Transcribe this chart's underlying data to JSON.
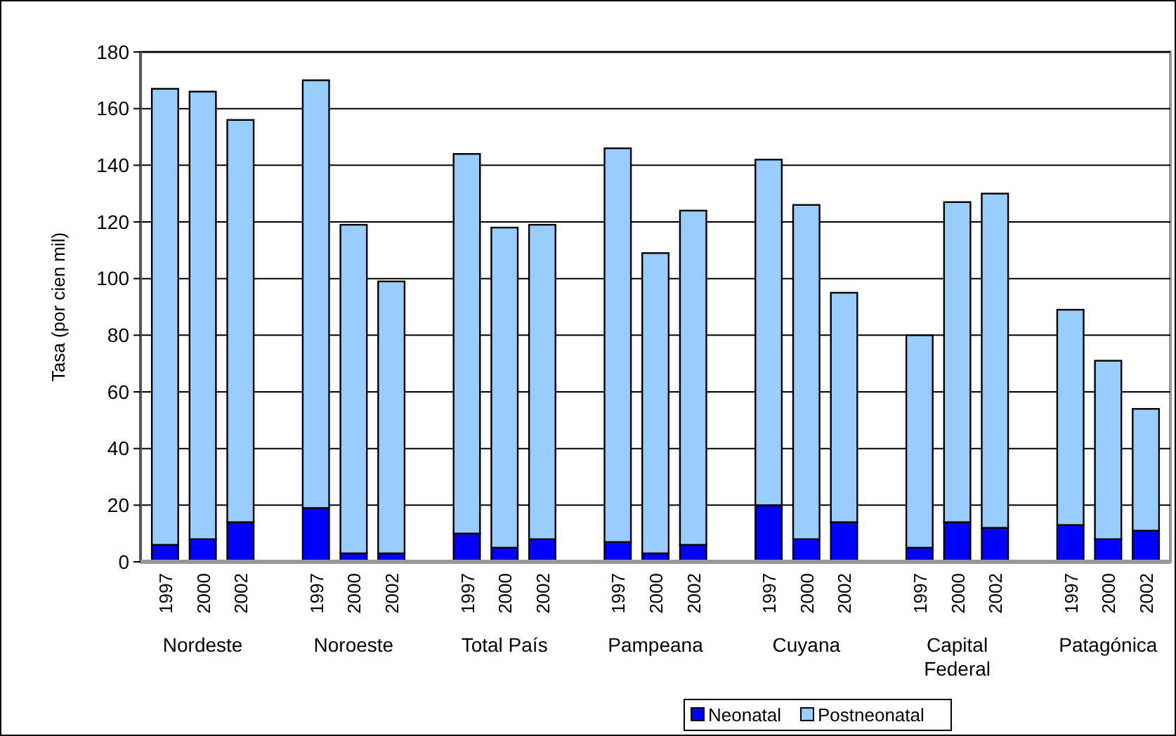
{
  "chart_data": {
    "type": "bar",
    "stacked": true,
    "ylabel": "Tasa (por cien mil)",
    "categories": [
      "1997",
      "2000",
      "2002",
      null,
      "1997",
      "2000",
      "2002",
      null,
      "1997",
      "2000",
      "2002",
      null,
      "1997",
      "2000",
      "2002",
      null,
      "1997",
      "2000",
      "2002",
      null,
      "1997",
      "2000",
      "2002",
      null,
      "1997",
      "2000",
      "2002"
    ],
    "series": [
      {
        "name": "Neonatal",
        "color": "#0000ff",
        "values": [
          6,
          8,
          14,
          null,
          19,
          3,
          3,
          null,
          10,
          5,
          8,
          null,
          7,
          3,
          6,
          null,
          20,
          8,
          14,
          null,
          5,
          14,
          12,
          null,
          13,
          8,
          11
        ]
      },
      {
        "name": "Postneonatal",
        "color": "#99ccff",
        "values": [
          161,
          158,
          142,
          null,
          151,
          116,
          96,
          null,
          134,
          113,
          111,
          null,
          139,
          106,
          118,
          null,
          122,
          118,
          81,
          null,
          75,
          113,
          118,
          null,
          76,
          63,
          43
        ]
      }
    ],
    "annotations": [
      "Nordeste",
      "Noroeste",
      "Total País",
      "Pampeana",
      "Cuyana",
      "Capital Federal",
      "Patagónica"
    ],
    "ylim": [
      0,
      180
    ],
    "yticks": [
      0,
      20,
      40,
      60,
      80,
      100,
      120,
      140,
      160,
      180
    ],
    "grid": "y",
    "legend": "bottom"
  }
}
